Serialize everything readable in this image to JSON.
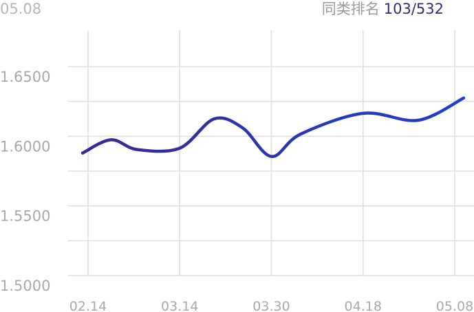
{
  "header": {
    "date": "05.08",
    "rank_label": "同类排名",
    "rank_value": "103/532"
  },
  "colors": {
    "line_start": "#3a2a8e",
    "line_end": "#1f3fd1",
    "grid": "#dedede",
    "tick_text": "#a8a8a8"
  },
  "chart_data": {
    "type": "line",
    "x": [
      "02.14",
      "02.21",
      "03.01",
      "03.14",
      "03.20",
      "03.25",
      "03.30",
      "04.05",
      "04.18",
      "04.30",
      "05.08"
    ],
    "series": [
      {
        "values": [
          1.588,
          1.5975,
          1.5905,
          1.5915,
          1.6125,
          1.606,
          1.5855,
          1.6015,
          1.6165,
          1.6115,
          1.6275
        ]
      }
    ],
    "xticks": [
      "02.14",
      "03.14",
      "03.30",
      "04.18",
      "05.08"
    ],
    "yticks": [
      "1.5000",
      "1.5500",
      "1.6000",
      "1.6500"
    ],
    "ylim": [
      1.5,
      1.675
    ],
    "grid": true
  }
}
